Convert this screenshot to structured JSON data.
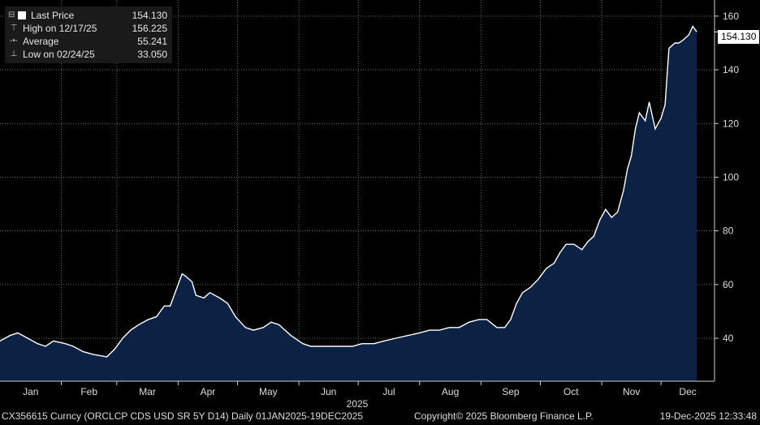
{
  "legend": {
    "last_label": "Last Price",
    "last_value": "154.130",
    "high_label": "High on 12/17/25",
    "high_value": "156.225",
    "avg_label": "Average",
    "avg_value": "55.241",
    "low_label": "Low on 02/24/25",
    "low_value": "33.050"
  },
  "footer": {
    "left": "CX356615 Curncy (ORCLCP CDS USD SR 5Y D14) Daily 01JAN2025-19DEC2025",
    "center": "Copyright© 2025 Bloomberg Finance L.P.",
    "right": "19-Dec-2025 12:33:48"
  },
  "colors": {
    "background": "#000000",
    "fill": "#0c2244",
    "line": "#ffffff",
    "grid": "#6a6a6a"
  },
  "chart_data": {
    "type": "area",
    "xlabel": "2025",
    "ylabel": "",
    "ylim": [
      24,
      166
    ],
    "yticks": [
      40,
      60,
      80,
      100,
      120,
      140,
      160
    ],
    "x_categories": [
      "Jan",
      "Feb",
      "Mar",
      "Apr",
      "May",
      "Jun",
      "Jul",
      "Aug",
      "Sep",
      "Oct",
      "Nov",
      "Dec"
    ],
    "grid": true,
    "last_value_label": "154.130",
    "series": [
      {
        "name": "Last Price",
        "x": [
          "2025-01-01",
          "2025-01-06",
          "2025-01-10",
          "2025-01-15",
          "2025-01-20",
          "2025-01-24",
          "2025-01-28",
          "2025-02-03",
          "2025-02-07",
          "2025-02-12",
          "2025-02-17",
          "2025-02-24",
          "2025-02-28",
          "2025-03-04",
          "2025-03-08",
          "2025-03-12",
          "2025-03-17",
          "2025-03-21",
          "2025-03-25",
          "2025-03-28",
          "2025-04-01",
          "2025-04-03",
          "2025-04-05",
          "2025-04-08",
          "2025-04-10",
          "2025-04-14",
          "2025-04-17",
          "2025-04-22",
          "2025-04-26",
          "2025-04-30",
          "2025-05-05",
          "2025-05-09",
          "2025-05-14",
          "2025-05-18",
          "2025-05-22",
          "2025-05-28",
          "2025-06-03",
          "2025-06-07",
          "2025-06-12",
          "2025-06-17",
          "2025-06-23",
          "2025-06-28",
          "2025-07-03",
          "2025-07-09",
          "2025-07-14",
          "2025-07-20",
          "2025-07-26",
          "2025-08-01",
          "2025-08-06",
          "2025-08-11",
          "2025-08-16",
          "2025-08-21",
          "2025-08-26",
          "2025-08-31",
          "2025-09-04",
          "2025-09-09",
          "2025-09-13",
          "2025-09-16",
          "2025-09-19",
          "2025-09-22",
          "2025-09-26",
          "2025-09-30",
          "2025-10-04",
          "2025-10-08",
          "2025-10-11",
          "2025-10-14",
          "2025-10-18",
          "2025-10-22",
          "2025-10-25",
          "2025-10-28",
          "2025-10-31",
          "2025-11-03",
          "2025-11-06",
          "2025-11-09",
          "2025-11-12",
          "2025-11-14",
          "2025-11-16",
          "2025-11-18",
          "2025-11-20",
          "2025-11-23",
          "2025-11-25",
          "2025-11-28",
          "2025-12-01",
          "2025-12-03",
          "2025-12-05",
          "2025-12-08",
          "2025-12-10",
          "2025-12-12",
          "2025-12-15",
          "2025-12-17",
          "2025-12-19"
        ],
        "values": [
          39,
          41,
          42,
          40,
          38,
          37,
          39,
          38,
          37,
          35,
          34,
          33.05,
          36,
          40,
          43,
          45,
          47,
          48,
          52,
          52,
          60,
          64,
          63,
          61,
          56,
          55,
          57,
          55,
          53,
          48,
          44,
          43,
          44,
          46,
          45,
          41,
          38,
          37,
          37,
          37,
          37,
          37,
          38,
          38,
          39,
          40,
          41,
          42,
          43,
          43,
          44,
          44,
          46,
          47,
          47,
          44,
          44,
          47,
          53,
          57,
          59,
          62,
          66,
          68,
          72,
          75,
          75,
          73,
          76,
          78,
          84,
          88,
          85,
          87,
          95,
          103,
          108,
          118,
          124,
          121,
          128,
          118,
          122,
          127,
          148,
          150,
          150,
          151,
          153,
          156.225,
          154.13
        ]
      }
    ]
  }
}
